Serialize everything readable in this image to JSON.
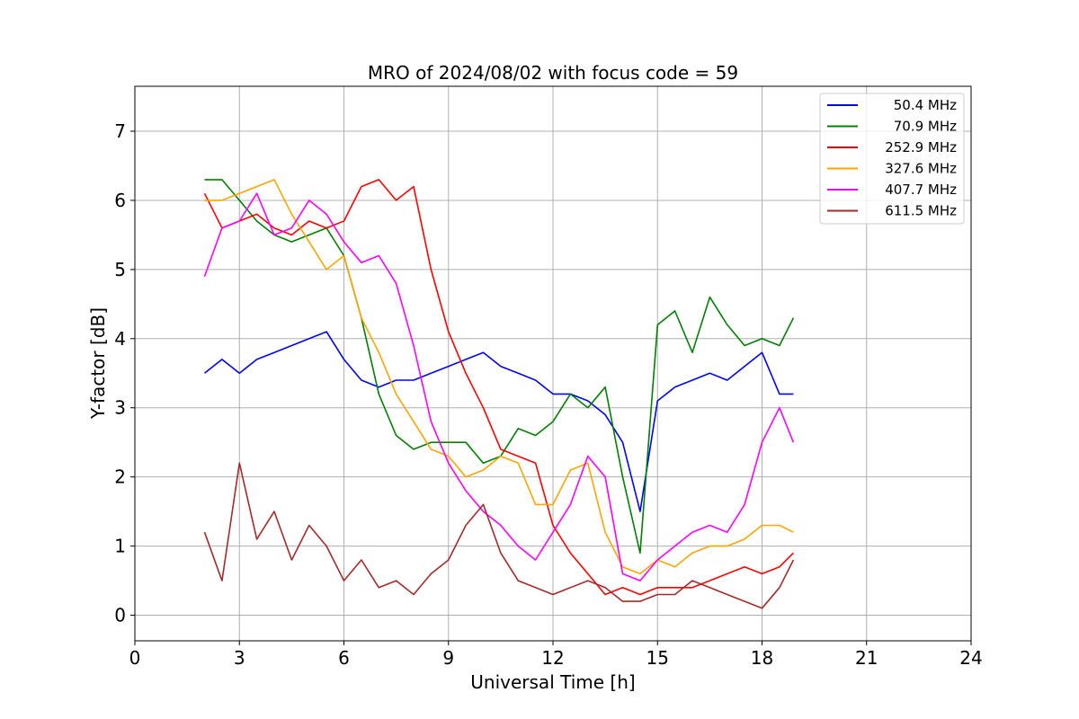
{
  "chart_data": {
    "type": "line",
    "title": "MRO of 2024/08/02 with focus code = 59",
    "xlabel": "Universal Time [h]",
    "ylabel": "Y-factor [dB]",
    "xlim": [
      0,
      24
    ],
    "ylim": [
      -0.37,
      7.65
    ],
    "xticks": [
      "0",
      "3",
      "6",
      "9",
      "12",
      "15",
      "18",
      "21",
      "24"
    ],
    "yticks": [
      "0",
      "1",
      "2",
      "3",
      "4",
      "5",
      "6",
      "7"
    ],
    "grid": true,
    "legend_position": "top-right",
    "series": [
      {
        "name": "50.4 MHz",
        "color": "#0000ff",
        "x": [
          2.0,
          2.5,
          3.0,
          3.5,
          4.0,
          4.5,
          5.0,
          5.5,
          6.0,
          6.5,
          7.0,
          7.5,
          8.0,
          8.5,
          9.0,
          9.5,
          10.0,
          10.5,
          11.0,
          11.5,
          12.0,
          12.5,
          13.0,
          13.5,
          14.0,
          14.5,
          15.0,
          15.5,
          16.0,
          16.5,
          17.0,
          17.5,
          18.0,
          18.5,
          18.9
        ],
        "y": [
          3.5,
          3.7,
          3.5,
          3.7,
          3.8,
          3.9,
          4.0,
          4.1,
          3.7,
          3.4,
          3.3,
          3.4,
          3.4,
          3.5,
          3.6,
          3.7,
          3.8,
          3.6,
          3.5,
          3.4,
          3.2,
          3.2,
          3.1,
          2.9,
          2.5,
          1.5,
          3.1,
          3.3,
          3.4,
          3.5,
          3.4,
          3.6,
          3.8,
          3.2,
          3.2
        ]
      },
      {
        "name": "70.9 MHz",
        "color": "#008000",
        "x": [
          2.0,
          2.5,
          3.0,
          3.5,
          4.0,
          4.5,
          5.0,
          5.5,
          6.0,
          6.5,
          7.0,
          7.5,
          8.0,
          8.5,
          9.0,
          9.5,
          10.0,
          10.5,
          11.0,
          11.5,
          12.0,
          12.5,
          13.0,
          13.5,
          14.0,
          14.5,
          15.0,
          15.5,
          16.0,
          16.5,
          17.0,
          17.5,
          18.0,
          18.5,
          18.9
        ],
        "y": [
          6.3,
          6.3,
          6.0,
          5.7,
          5.5,
          5.4,
          5.5,
          5.6,
          5.2,
          4.3,
          3.2,
          2.6,
          2.4,
          2.5,
          2.5,
          2.5,
          2.2,
          2.3,
          2.7,
          2.6,
          2.8,
          3.2,
          3.0,
          3.3,
          2.0,
          0.9,
          4.2,
          4.4,
          3.8,
          4.6,
          4.2,
          3.9,
          4.0,
          3.9,
          4.3
        ]
      },
      {
        "name": "252.9 MHz",
        "color": "#ff0000",
        "x": [
          2.0,
          2.5,
          3.0,
          3.5,
          4.0,
          4.5,
          5.0,
          5.5,
          6.0,
          6.5,
          7.0,
          7.5,
          8.0,
          8.5,
          9.0,
          9.5,
          10.0,
          10.5,
          11.0,
          11.5,
          12.0,
          12.5,
          13.0,
          13.5,
          14.0,
          14.5,
          15.0,
          15.5,
          16.0,
          16.5,
          17.0,
          17.5,
          18.0,
          18.5,
          18.9
        ],
        "y": [
          6.1,
          5.6,
          5.7,
          5.8,
          5.6,
          5.5,
          5.7,
          5.6,
          5.7,
          6.2,
          6.3,
          6.0,
          6.2,
          5.0,
          4.1,
          3.5,
          3.0,
          2.4,
          2.3,
          2.2,
          1.3,
          0.9,
          0.6,
          0.3,
          0.4,
          0.3,
          0.4,
          0.4,
          0.4,
          0.5,
          0.6,
          0.7,
          0.6,
          0.7,
          0.9
        ]
      },
      {
        "name": "327.6 MHz",
        "color": "#ffa500",
        "x": [
          2.0,
          2.5,
          3.0,
          3.5,
          4.0,
          4.5,
          5.0,
          5.5,
          6.0,
          6.5,
          7.0,
          7.5,
          8.0,
          8.5,
          9.0,
          9.5,
          10.0,
          10.5,
          11.0,
          11.5,
          12.0,
          12.5,
          13.0,
          13.5,
          14.0,
          14.5,
          15.0,
          15.5,
          16.0,
          16.5,
          17.0,
          17.5,
          18.0,
          18.5,
          18.9
        ],
        "y": [
          6.0,
          6.0,
          6.1,
          6.2,
          6.3,
          5.8,
          5.4,
          5.0,
          5.2,
          4.3,
          3.8,
          3.2,
          2.8,
          2.4,
          2.3,
          2.0,
          2.1,
          2.3,
          2.2,
          1.6,
          1.6,
          2.1,
          2.2,
          1.2,
          0.7,
          0.6,
          0.8,
          0.7,
          0.9,
          1.0,
          1.0,
          1.1,
          1.3,
          1.3,
          1.2
        ]
      },
      {
        "name": "407.7 MHz",
        "color": "#ff00ff",
        "x": [
          2.0,
          2.5,
          3.0,
          3.5,
          4.0,
          4.5,
          5.0,
          5.5,
          6.0,
          6.5,
          7.0,
          7.5,
          8.0,
          8.5,
          9.0,
          9.5,
          10.0,
          10.5,
          11.0,
          11.5,
          12.0,
          12.5,
          13.0,
          13.5,
          14.0,
          14.5,
          15.0,
          15.5,
          16.0,
          16.5,
          17.0,
          17.5,
          18.0,
          18.5,
          18.9
        ],
        "y": [
          4.9,
          5.6,
          5.7,
          6.1,
          5.5,
          5.6,
          6.0,
          5.8,
          5.4,
          5.1,
          5.2,
          4.8,
          3.9,
          2.8,
          2.2,
          1.8,
          1.5,
          1.3,
          1.0,
          0.8,
          1.2,
          1.6,
          2.3,
          2.0,
          0.6,
          0.5,
          0.8,
          1.0,
          1.2,
          1.3,
          1.2,
          1.6,
          2.5,
          3.0,
          2.5
        ]
      },
      {
        "name": "611.5 MHz",
        "color": "#a52a2a",
        "x": [
          2.0,
          2.5,
          3.0,
          3.5,
          4.0,
          4.5,
          5.0,
          5.5,
          6.0,
          6.5,
          7.0,
          7.5,
          8.0,
          8.5,
          9.0,
          9.5,
          10.0,
          10.5,
          11.0,
          11.5,
          12.0,
          12.5,
          13.0,
          13.5,
          14.0,
          14.5,
          15.0,
          15.5,
          16.0,
          16.5,
          17.0,
          17.5,
          18.0,
          18.5,
          18.9
        ],
        "y": [
          1.2,
          0.5,
          2.2,
          1.1,
          1.5,
          0.8,
          1.3,
          1.0,
          0.5,
          0.8,
          0.4,
          0.5,
          0.3,
          0.6,
          0.8,
          1.3,
          1.6,
          0.9,
          0.5,
          0.4,
          0.3,
          0.4,
          0.5,
          0.4,
          0.2,
          0.2,
          0.3,
          0.3,
          0.5,
          0.4,
          0.3,
          0.2,
          0.1,
          0.4,
          0.8
        ]
      }
    ]
  }
}
